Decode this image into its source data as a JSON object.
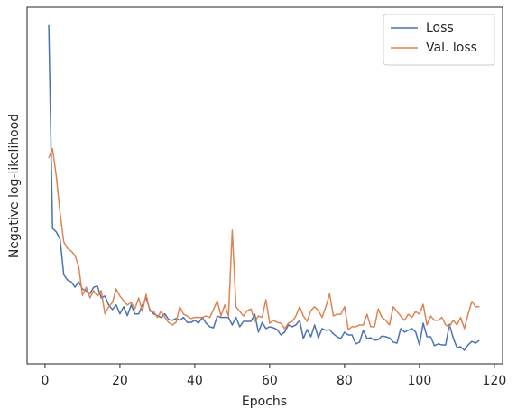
{
  "chart_data": {
    "type": "line",
    "xlabel": "Epochs",
    "ylabel": "Negative log-likelihood",
    "x": [
      1,
      2,
      3,
      4,
      5,
      6,
      7,
      8,
      9,
      10,
      11,
      12,
      13,
      14,
      15,
      16,
      17,
      18,
      19,
      20,
      21,
      22,
      23,
      24,
      25,
      26,
      27,
      28,
      29,
      30,
      31,
      32,
      33,
      34,
      35,
      36,
      37,
      38,
      39,
      40,
      41,
      42,
      43,
      44,
      45,
      46,
      47,
      48,
      49,
      50,
      51,
      52,
      53,
      54,
      55,
      56,
      57,
      58,
      59,
      60,
      61,
      62,
      63,
      64,
      65,
      66,
      67,
      68,
      69,
      70,
      71,
      72,
      73,
      74,
      75,
      76,
      77,
      78,
      79,
      80,
      81,
      82,
      83,
      84,
      85,
      86,
      87,
      88,
      89,
      90,
      91,
      92,
      93,
      94,
      95,
      96,
      97,
      98,
      99,
      100,
      101,
      102,
      103,
      104,
      105,
      106,
      107,
      108,
      109,
      110,
      111,
      112,
      113,
      114,
      115,
      116
    ],
    "series": [
      {
        "name": "Loss",
        "color": "#4c72b0",
        "values": [
          95,
          38,
          37,
          35,
          25,
          23.5,
          23,
          21.5,
          23,
          21,
          20.5,
          19.7,
          21.5,
          21.8,
          18.5,
          19,
          16.5,
          15.2,
          16.5,
          14,
          16,
          13.5,
          16.5,
          14,
          14,
          16.5,
          18.5,
          15.2,
          14,
          13.5,
          13,
          14,
          12.4,
          12.2,
          12.7,
          12.2,
          13,
          11.6,
          11.6,
          12.2,
          11.4,
          13,
          11.4,
          10.4,
          10.1,
          13.4,
          13,
          13,
          13,
          10.9,
          13,
          10.4,
          11.9,
          11.9,
          11.9,
          13.9,
          8.9,
          11.6,
          9.9,
          10.4,
          10.1,
          9.6,
          8.1,
          8.9,
          10.9,
          10.4,
          10.9,
          12.2,
          7.1,
          9.6,
          7.6,
          10.9,
          7.3,
          9.9,
          9.4,
          9.6,
          8.4,
          7.6,
          7.1,
          8.9,
          8.1,
          8.1,
          5.6,
          6.1,
          9.4,
          7.1,
          7.3,
          6.6,
          6.8,
          7.8,
          7.6,
          7.3,
          6.1,
          5.8,
          9.9,
          8.9,
          9.4,
          9.9,
          8.9,
          5.3,
          11.4,
          7.6,
          7.6,
          5.1,
          5.6,
          5.3,
          5.3,
          11.1,
          7.3,
          4.6,
          4.8,
          3.8,
          5.3,
          6.3,
          5.8,
          6.6
        ]
      },
      {
        "name": "Val. loss",
        "color": "#dd8452",
        "values": [
          57.7,
          60.3,
          52.7,
          42.5,
          34.2,
          32.4,
          31.6,
          30.4,
          27.3,
          19.2,
          21.5,
          18.5,
          20.5,
          19,
          20.5,
          14,
          16,
          17.2,
          21,
          19,
          17.7,
          16.5,
          17.2,
          15.4,
          18.5,
          14.7,
          19.5,
          14.7,
          14.7,
          13,
          14.7,
          13,
          11.6,
          10.9,
          11.6,
          16,
          13.9,
          13.4,
          12.7,
          13,
          13,
          13,
          13.4,
          13,
          15.2,
          17.7,
          13.4,
          16.5,
          13.4,
          37.5,
          16,
          14.7,
          13.4,
          14.9,
          15.4,
          11.9,
          13.4,
          13,
          18,
          11.4,
          12.2,
          11.6,
          11.4,
          9.9,
          11.4,
          11.9,
          13.4,
          16,
          13.4,
          11.9,
          14.9,
          16,
          14.9,
          13,
          16,
          19.7,
          13.4,
          13.9,
          13.9,
          16,
          9.6,
          10.4,
          10.4,
          10.9,
          10.9,
          13.9,
          10.4,
          10.4,
          15.4,
          13,
          12.2,
          10.9,
          16,
          14.7,
          13.4,
          12.2,
          13.9,
          13,
          14.7,
          13.9,
          16.7,
          10.9,
          13.4,
          12.2,
          12.2,
          13,
          10.9,
          10.4,
          12.2,
          10.9,
          13,
          9.9,
          13.9,
          17.5,
          16,
          16
        ]
      }
    ],
    "xlim": [
      -4.8,
      122.2
    ],
    "xticks": [
      0,
      20,
      40,
      60,
      80,
      100,
      120
    ],
    "ylim": [
      0,
      100
    ],
    "legend": "upper right"
  }
}
